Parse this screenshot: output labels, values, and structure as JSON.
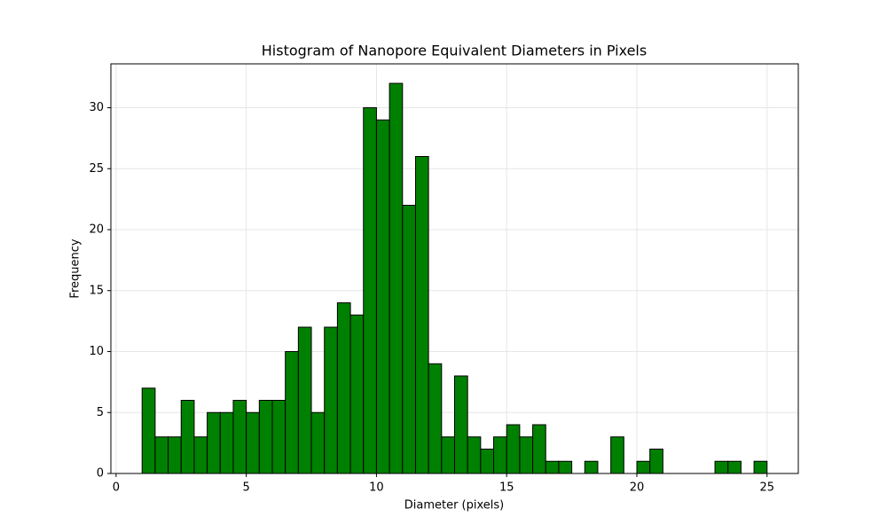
{
  "chart_data": {
    "type": "histogram",
    "title": "Histogram of Nanopore Equivalent Diameters in Pixels",
    "x_label": "Diameter (pixels)",
    "y_label": "Frequency",
    "bins": [
      1,
      1.5,
      2,
      2.5,
      3,
      3.5,
      4,
      4.5,
      5,
      5.5,
      6,
      6.5,
      7,
      7.5,
      8,
      8.5,
      9,
      9.5,
      10,
      10.5,
      11,
      11.5,
      12,
      12.5,
      13,
      13.5,
      14,
      14.5,
      15,
      15.5,
      16,
      16.5,
      17,
      17.5,
      18,
      18.5,
      19,
      19.5,
      20,
      20.5,
      21,
      21.5,
      22,
      22.5,
      23,
      23.5,
      24,
      24.5,
      25
    ],
    "values": [
      7,
      3,
      3,
      6,
      3,
      5,
      5,
      6,
      5,
      6,
      6,
      10,
      12,
      5,
      12,
      14,
      13,
      30,
      29,
      32,
      22,
      26,
      9,
      3,
      8,
      3,
      2,
      3,
      4,
      3,
      4,
      1,
      1,
      0,
      1,
      0,
      3,
      0,
      1,
      2,
      0,
      0,
      0,
      0,
      1,
      1,
      0,
      1
    ],
    "color": "#008000",
    "edge_color": "#000000",
    "xlim": [
      -0.2,
      26.2
    ],
    "xticks": [
      0,
      5,
      10,
      15,
      20,
      25
    ],
    "ylim": [
      0,
      33.6
    ],
    "yticks": [
      0,
      5,
      10,
      15,
      20,
      25,
      30
    ],
    "grid": true
  }
}
